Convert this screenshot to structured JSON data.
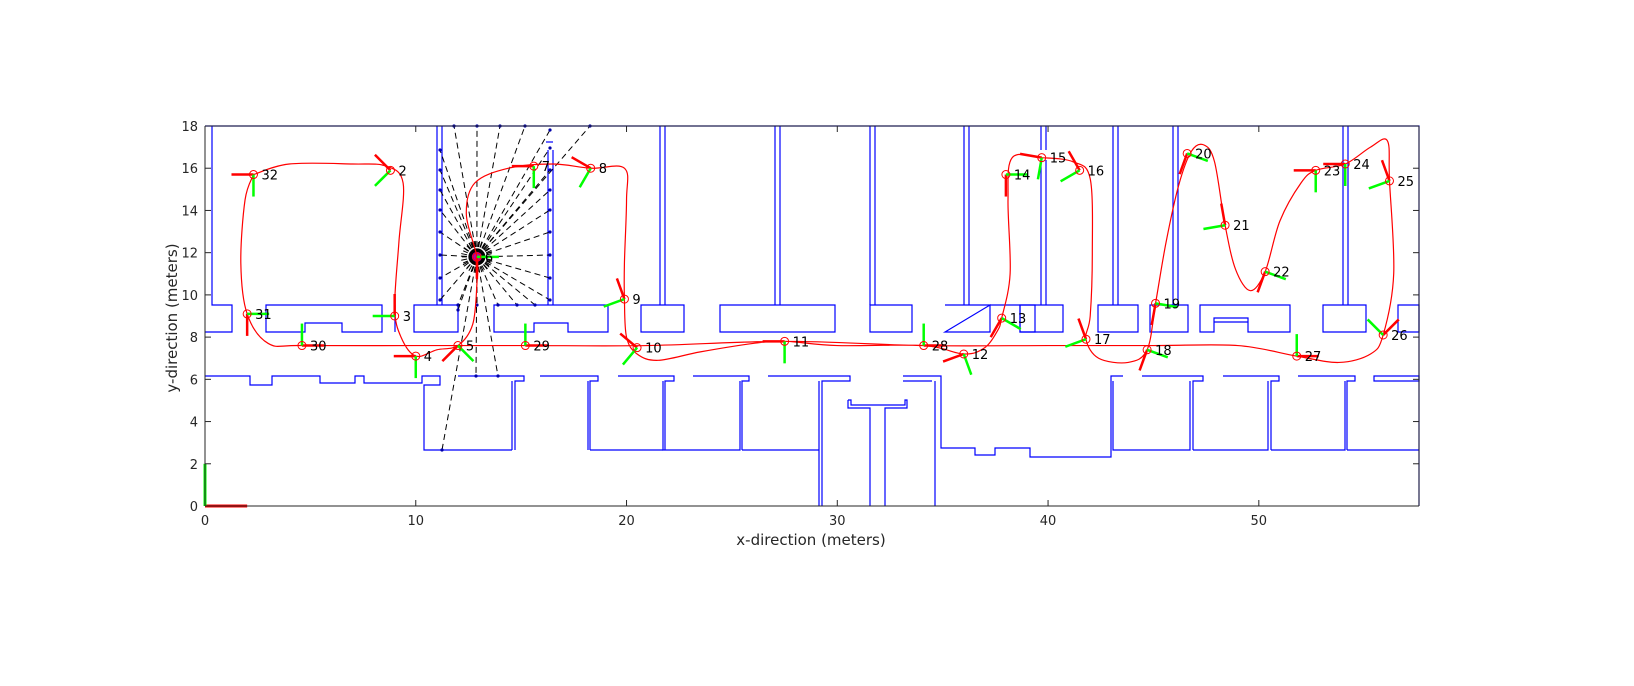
{
  "chart_data": {
    "type": "scatter",
    "title": "",
    "xlabel": "x-direction (meters)",
    "ylabel": "y-direction (meters)",
    "xlim": [
      0,
      57.6
    ],
    "ylim": [
      0,
      18
    ],
    "xticks": [
      "0",
      "10",
      "20",
      "30",
      "40",
      "50"
    ],
    "xtick_values": [
      0,
      10,
      20,
      30,
      40,
      50
    ],
    "yticks": [
      "0",
      "2",
      "4",
      "6",
      "8",
      "10",
      "12",
      "14",
      "16",
      "18"
    ],
    "ytick_values": [
      0,
      2,
      4,
      6,
      8,
      10,
      12,
      14,
      16,
      18
    ],
    "grid": false,
    "colors": {
      "map": "#0000ff",
      "trajectory": "#ff0000",
      "pose_x_axis": "#ff0000",
      "pose_y_axis": "#00ff00",
      "scan_rays": "#000000",
      "axes": "#262626"
    },
    "robot_pose": {
      "x": 12.9,
      "y": 11.8
    },
    "waypoints": [
      {
        "label": "32",
        "x": 2.3,
        "y": 15.7,
        "theta": 180
      },
      {
        "label": "2",
        "x": 8.8,
        "y": 15.9,
        "theta": 135
      },
      {
        "label": "3",
        "x": 9.0,
        "y": 9.0,
        "theta": 90
      },
      {
        "label": "4",
        "x": 10.0,
        "y": 7.1,
        "theta": 180
      },
      {
        "label": "5",
        "x": 12.0,
        "y": 7.6,
        "theta": 225
      },
      {
        "label": "6",
        "x": 12.9,
        "y": 11.8,
        "theta": 270
      },
      {
        "label": "7",
        "x": 15.6,
        "y": 16.1,
        "theta": 180
      },
      {
        "label": "8",
        "x": 18.3,
        "y": 16.0,
        "theta": 150
      },
      {
        "label": "9",
        "x": 19.9,
        "y": 9.8,
        "theta": 110
      },
      {
        "label": "10",
        "x": 20.5,
        "y": 7.5,
        "theta": 140
      },
      {
        "label": "11",
        "x": 27.5,
        "y": 7.8,
        "theta": 180
      },
      {
        "label": "28",
        "x": 34.1,
        "y": 7.6,
        "theta": 0
      },
      {
        "label": "12",
        "x": 36.0,
        "y": 7.2,
        "theta": 200
      },
      {
        "label": "13",
        "x": 37.8,
        "y": 8.9,
        "theta": 240
      },
      {
        "label": "14",
        "x": 38.0,
        "y": 15.7,
        "theta": 270
      },
      {
        "label": "15",
        "x": 39.7,
        "y": 16.5,
        "theta": 170
      },
      {
        "label": "16",
        "x": 41.5,
        "y": 15.9,
        "theta": 120
      },
      {
        "label": "17",
        "x": 41.8,
        "y": 7.9,
        "theta": 110
      },
      {
        "label": "18",
        "x": 44.7,
        "y": 7.4,
        "theta": 250
      },
      {
        "label": "19",
        "x": 45.1,
        "y": 9.6,
        "theta": 260
      },
      {
        "label": "20",
        "x": 46.6,
        "y": 16.7,
        "theta": 250
      },
      {
        "label": "21",
        "x": 48.4,
        "y": 13.3,
        "theta": 100
      },
      {
        "label": "22",
        "x": 50.3,
        "y": 11.1,
        "theta": 250
      },
      {
        "label": "23",
        "x": 52.7,
        "y": 15.9,
        "theta": 180
      },
      {
        "label": "24",
        "x": 54.1,
        "y": 16.2,
        "theta": 180
      },
      {
        "label": "25",
        "x": 56.2,
        "y": 15.4,
        "theta": 110
      },
      {
        "label": "26",
        "x": 55.9,
        "y": 8.1,
        "theta": 45
      },
      {
        "label": "27",
        "x": 51.8,
        "y": 7.1,
        "theta": 0
      },
      {
        "label": "29",
        "x": 15.2,
        "y": 7.6,
        "theta": 0
      },
      {
        "label": "30",
        "x": 4.6,
        "y": 7.6,
        "theta": 0
      },
      {
        "label": "31",
        "x": 2.0,
        "y": 9.1,
        "theta": 270
      }
    ],
    "trajectory": [
      [
        2.3,
        15.7
      ],
      [
        4,
        16.2
      ],
      [
        7,
        16.2
      ],
      [
        8.6,
        16.1
      ],
      [
        9.4,
        15.3
      ],
      [
        9.2,
        12.5
      ],
      [
        9.0,
        9.4
      ],
      [
        9.3,
        8.0
      ],
      [
        10.0,
        7.1
      ],
      [
        11,
        7.4
      ],
      [
        12.0,
        7.6
      ],
      [
        12.7,
        8.6
      ],
      [
        12.9,
        10.5
      ],
      [
        12.9,
        11.8
      ],
      [
        12.4,
        13.8
      ],
      [
        12.8,
        15.3
      ],
      [
        14.4,
        16.0
      ],
      [
        16.5,
        16.2
      ],
      [
        18.3,
        16.0
      ],
      [
        19.9,
        16.0
      ],
      [
        20.0,
        14.5
      ],
      [
        19.9,
        11.5
      ],
      [
        19.9,
        9.8
      ],
      [
        20.0,
        8.0
      ],
      [
        20.5,
        7.2
      ],
      [
        21.5,
        6.9
      ],
      [
        23.5,
        7.3
      ],
      [
        26.0,
        7.7
      ],
      [
        27.5,
        7.8
      ],
      [
        30,
        7.6
      ],
      [
        34.1,
        7.6
      ],
      [
        36.0,
        7.2
      ],
      [
        37.0,
        7.5
      ],
      [
        37.6,
        8.3
      ],
      [
        37.8,
        8.9
      ],
      [
        38.2,
        11
      ],
      [
        38.1,
        14.5
      ],
      [
        38.3,
        16.5
      ],
      [
        39.7,
        16.5
      ],
      [
        41.2,
        16.3
      ],
      [
        42.0,
        15.5
      ],
      [
        42.1,
        12
      ],
      [
        42.0,
        9
      ],
      [
        41.8,
        7.9
      ],
      [
        42.4,
        7.0
      ],
      [
        43.8,
        6.8
      ],
      [
        44.7,
        7.4
      ],
      [
        45.1,
        9.6
      ],
      [
        45.6,
        12.5
      ],
      [
        46.2,
        15.2
      ],
      [
        46.8,
        16.8
      ],
      [
        47.4,
        17.1
      ],
      [
        47.9,
        16.3
      ],
      [
        48.4,
        13.3
      ],
      [
        48.9,
        11.2
      ],
      [
        49.6,
        10.2
      ],
      [
        50.3,
        11.1
      ],
      [
        51.0,
        13.5
      ],
      [
        52.0,
        15.3
      ],
      [
        52.7,
        15.9
      ],
      [
        54.1,
        16.2
      ],
      [
        55.3,
        17.0
      ],
      [
        56.1,
        17.3
      ],
      [
        56.2,
        15.4
      ],
      [
        56.4,
        11
      ],
      [
        55.9,
        8.1
      ],
      [
        55.3,
        7.2
      ],
      [
        53.8,
        6.8
      ],
      [
        51.8,
        7.1
      ],
      [
        49,
        7.6
      ],
      [
        45,
        7.6
      ],
      [
        40,
        7.6
      ],
      [
        34.1,
        7.6
      ],
      [
        27.5,
        7.8
      ],
      [
        21,
        7.6
      ],
      [
        15.2,
        7.6
      ],
      [
        10,
        7.6
      ],
      [
        4.6,
        7.6
      ],
      [
        3.0,
        7.7
      ],
      [
        2.0,
        9.1
      ],
      [
        1.7,
        11.5
      ],
      [
        1.9,
        14.5
      ],
      [
        2.3,
        15.7
      ]
    ]
  }
}
